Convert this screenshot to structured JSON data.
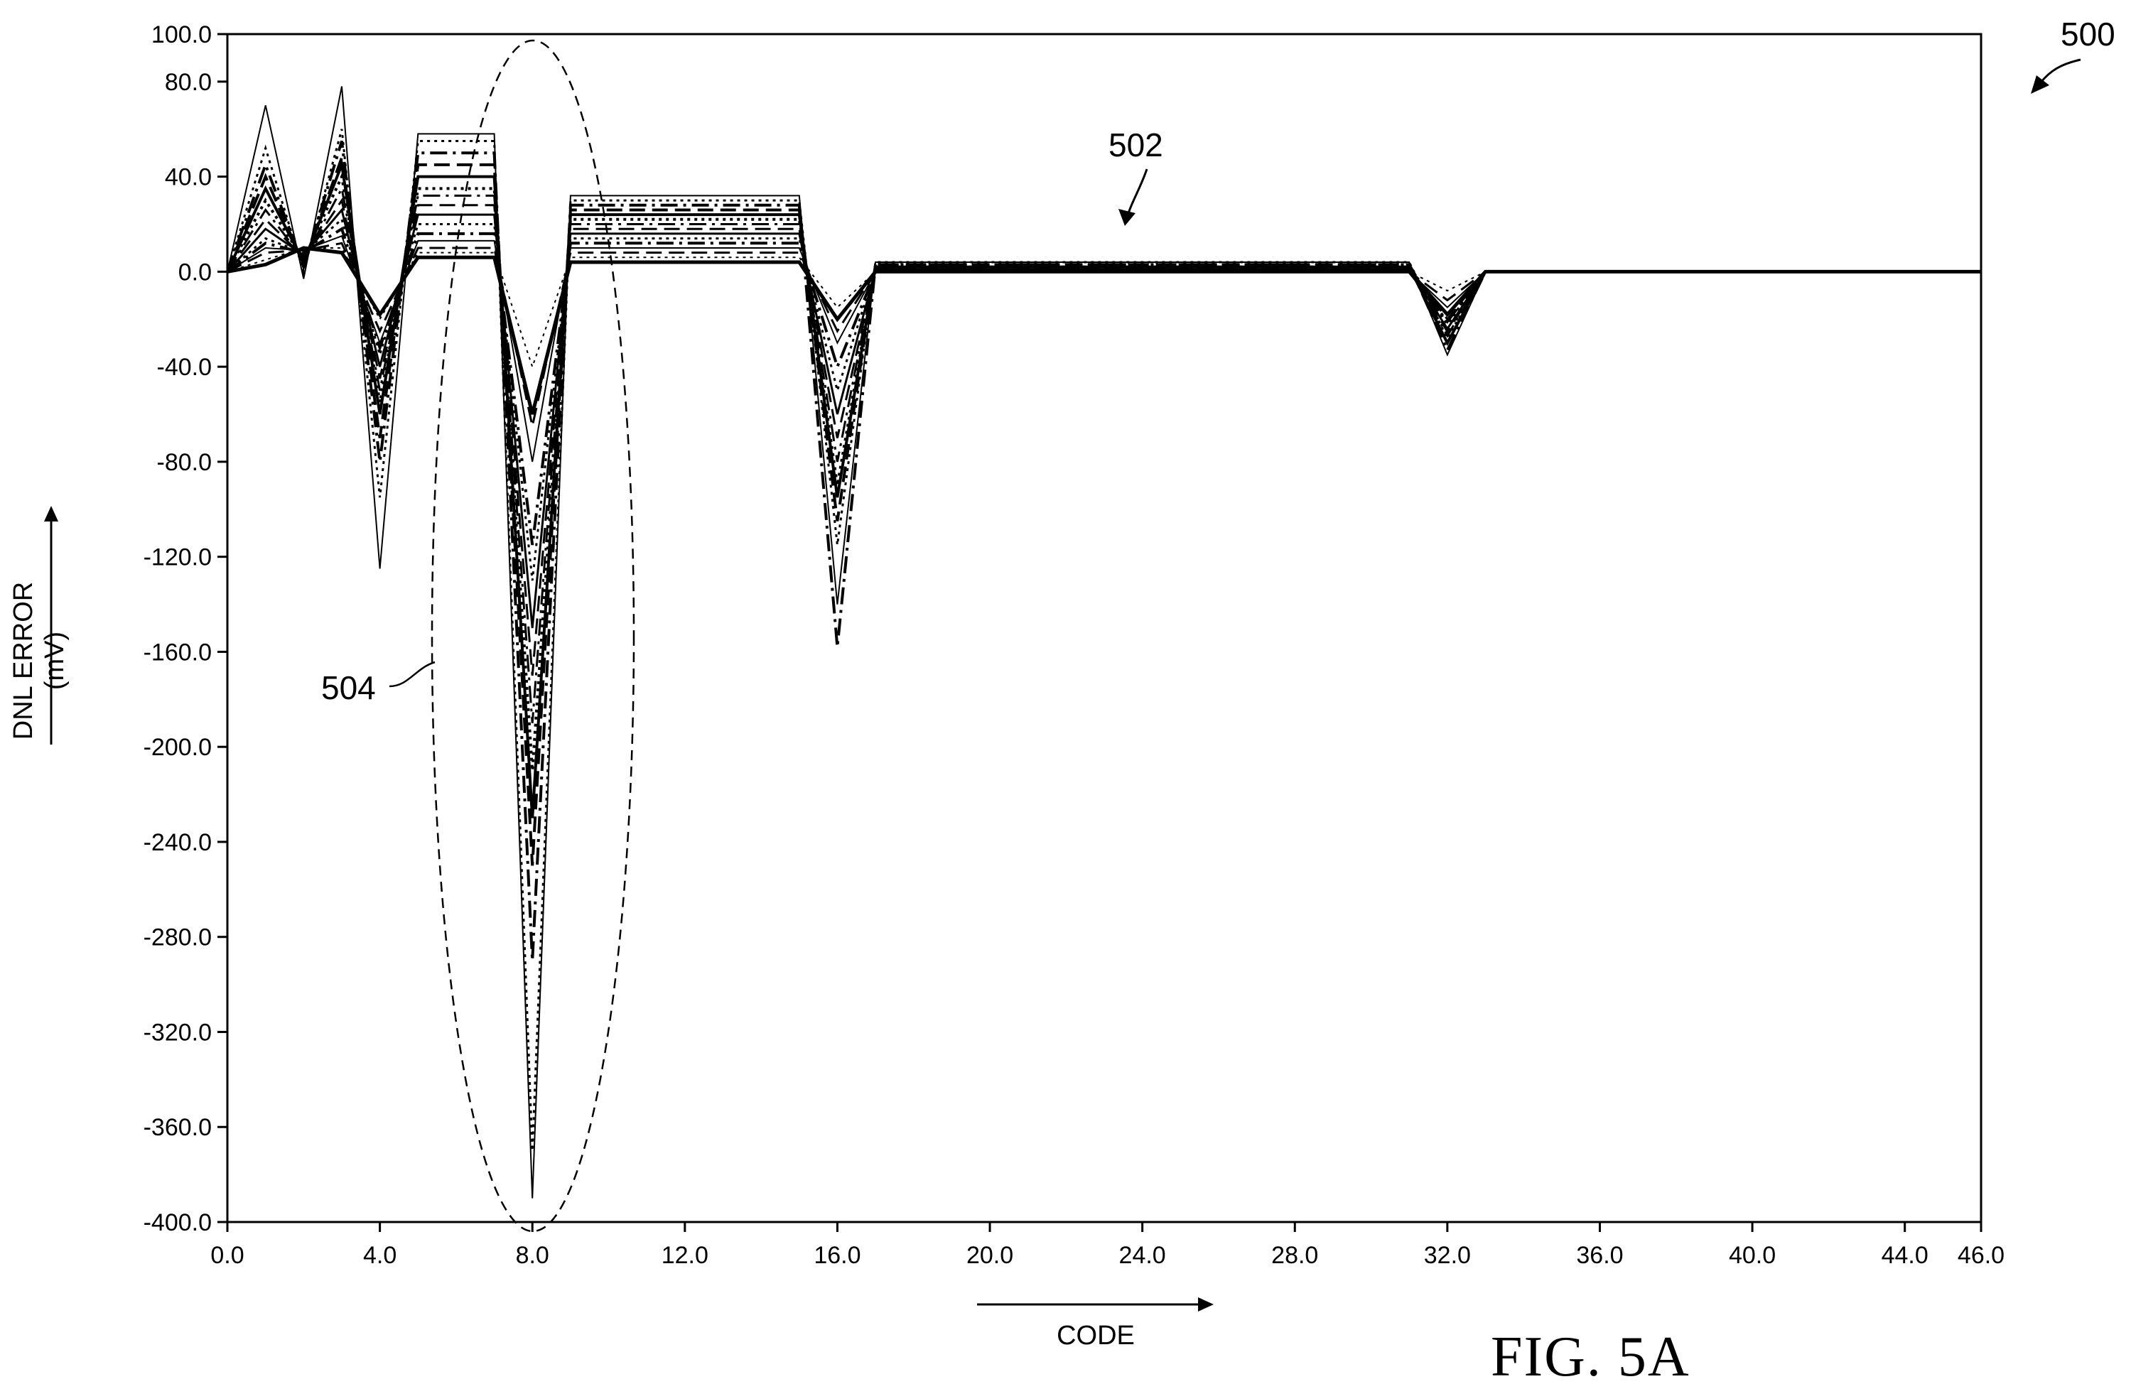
{
  "figure": {
    "caption": "FIG. 5A",
    "ref_figure": "500",
    "ref_curves": "502",
    "ref_region": "504"
  },
  "chart_data": {
    "type": "line",
    "title": "",
    "xlabel": "CODE",
    "ylabel": "DNL ERROR",
    "ylabel_unit": "(mV)",
    "xlim": [
      0,
      46
    ],
    "ylim": [
      -400,
      100
    ],
    "xticks": [
      "0.0",
      "4.0",
      "8.0",
      "12.0",
      "16.0",
      "20.0",
      "24.0",
      "28.0",
      "32.0",
      "36.0",
      "40.0",
      "44.0",
      "46.0"
    ],
    "xtick_values": [
      0,
      4,
      8,
      12,
      16,
      20,
      24,
      28,
      32,
      36,
      40,
      44,
      46
    ],
    "yticks": [
      "100.0",
      "80.0",
      "40.0",
      "0.0",
      "-40.0",
      "-80.0",
      "-120.0",
      "-160.0",
      "-200.0",
      "-240.0",
      "-280.0",
      "-320.0",
      "-360.0",
      "-400.0"
    ],
    "ytick_values": [
      100,
      80,
      40,
      0,
      -40,
      -80,
      -120,
      -160,
      -200,
      -240,
      -280,
      -320,
      -360,
      -400
    ],
    "grid": false,
    "legend": "none",
    "x": [
      0,
      1,
      2,
      3,
      4,
      5,
      7,
      8,
      9,
      15,
      16,
      17,
      31,
      32,
      33,
      46
    ],
    "series": [
      {
        "style": "solid",
        "width": 2,
        "values": [
          0,
          70,
          -3,
          78,
          -125,
          58,
          58,
          -390,
          32,
          32,
          -140,
          4,
          4,
          -35,
          0,
          0
        ]
      },
      {
        "style": "dotted",
        "width": 3,
        "values": [
          0,
          52,
          0,
          60,
          -95,
          55,
          55,
          -370,
          30,
          30,
          -115,
          4,
          4,
          -28,
          0,
          0
        ]
      },
      {
        "style": "dashdot",
        "width": 4,
        "values": [
          0,
          45,
          2,
          55,
          -80,
          50,
          50,
          -290,
          28,
          28,
          -158,
          3,
          3,
          -33,
          0,
          0
        ]
      },
      {
        "style": "dashed",
        "width": 4,
        "values": [
          0,
          40,
          3,
          48,
          -70,
          45,
          45,
          -250,
          26,
          26,
          -105,
          3,
          3,
          -25,
          0,
          0
        ]
      },
      {
        "style": "solid",
        "width": 4,
        "values": [
          0,
          35,
          4,
          45,
          -60,
          40,
          40,
          -230,
          24,
          24,
          -95,
          2,
          2,
          -30,
          0,
          0
        ]
      },
      {
        "style": "dotted",
        "width": 4,
        "values": [
          0,
          30,
          5,
          40,
          -55,
          35,
          35,
          -210,
          22,
          22,
          -90,
          2,
          2,
          -22,
          0,
          0
        ]
      },
      {
        "style": "dashdot",
        "width": 3,
        "values": [
          0,
          26,
          5,
          35,
          -50,
          32,
          32,
          -190,
          20,
          20,
          -80,
          2,
          2,
          -27,
          0,
          0
        ]
      },
      {
        "style": "dashed",
        "width": 3,
        "values": [
          0,
          22,
          6,
          30,
          -45,
          28,
          28,
          -170,
          18,
          18,
          -70,
          1,
          1,
          -20,
          0,
          0
        ]
      },
      {
        "style": "solid",
        "width": 3,
        "values": [
          0,
          18,
          7,
          26,
          -40,
          24,
          24,
          -150,
          16,
          16,
          -60,
          1,
          1,
          -24,
          0,
          0
        ]
      },
      {
        "style": "dotted",
        "width": 3,
        "values": [
          0,
          14,
          8,
          22,
          -35,
          20,
          20,
          -130,
          14,
          14,
          -50,
          1,
          1,
          -18,
          0,
          0
        ]
      },
      {
        "style": "dashdot",
        "width": 4,
        "values": [
          0,
          12,
          8,
          18,
          -32,
          16,
          16,
          -115,
          12,
          12,
          -40,
          0,
          0,
          -21,
          0,
          0
        ]
      },
      {
        "style": "solid",
        "width": 2,
        "values": [
          0,
          10,
          9,
          15,
          -30,
          13,
          13,
          -80,
          10,
          10,
          -30,
          0,
          0,
          -15,
          0,
          0
        ]
      },
      {
        "style": "dashed",
        "width": 3,
        "values": [
          0,
          8,
          9,
          12,
          -25,
          10,
          10,
          -65,
          8,
          8,
          -25,
          0,
          0,
          -12,
          0,
          0
        ]
      },
      {
        "style": "dotted",
        "width": 2,
        "values": [
          0,
          5,
          10,
          10,
          -20,
          8,
          8,
          -40,
          6,
          6,
          -15,
          0,
          0,
          -8,
          0,
          0
        ]
      },
      {
        "style": "solid",
        "width": 5,
        "values": [
          0,
          3,
          10,
          8,
          -18,
          6,
          6,
          -60,
          4,
          4,
          -20,
          0,
          0,
          -18,
          0,
          0
        ]
      }
    ]
  }
}
